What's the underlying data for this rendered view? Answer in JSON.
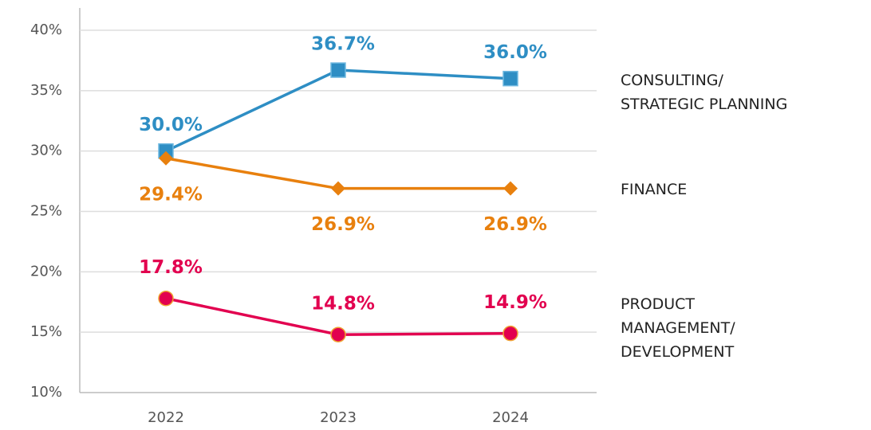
{
  "chart_data": {
    "type": "line",
    "categories": [
      "2022",
      "2023",
      "2024"
    ],
    "series": [
      {
        "name": "CONSULTING/\nSTRATEGIC PLANNING",
        "color": "#2e8ec4",
        "marker": "square",
        "values": [
          30.0,
          36.7,
          36.0
        ],
        "value_labels": [
          "30.0%",
          "36.7%",
          "36.0%"
        ]
      },
      {
        "name": "FINANCE",
        "color": "#e8800e",
        "marker": "diamond",
        "values": [
          29.4,
          26.9,
          26.9
        ],
        "value_labels": [
          "29.4%",
          "26.9%",
          "26.9%"
        ]
      },
      {
        "name": "PRODUCT\nMANAGEMENT/\nDEVELOPMENT",
        "color": "#e2004f",
        "marker": "circle",
        "values": [
          17.8,
          14.8,
          14.9
        ],
        "value_labels": [
          "17.8%",
          "14.8%",
          "14.9%"
        ]
      }
    ],
    "ylim": [
      10,
      40
    ],
    "yticks": [
      {
        "value": 10,
        "label": "10%"
      },
      {
        "value": 15,
        "label": "15%"
      },
      {
        "value": 20,
        "label": "20%"
      },
      {
        "value": 25,
        "label": "25%"
      },
      {
        "value": 30,
        "label": "30%"
      },
      {
        "value": 35,
        "label": "35%"
      },
      {
        "value": 40,
        "label": "40%"
      }
    ],
    "grid": true
  }
}
